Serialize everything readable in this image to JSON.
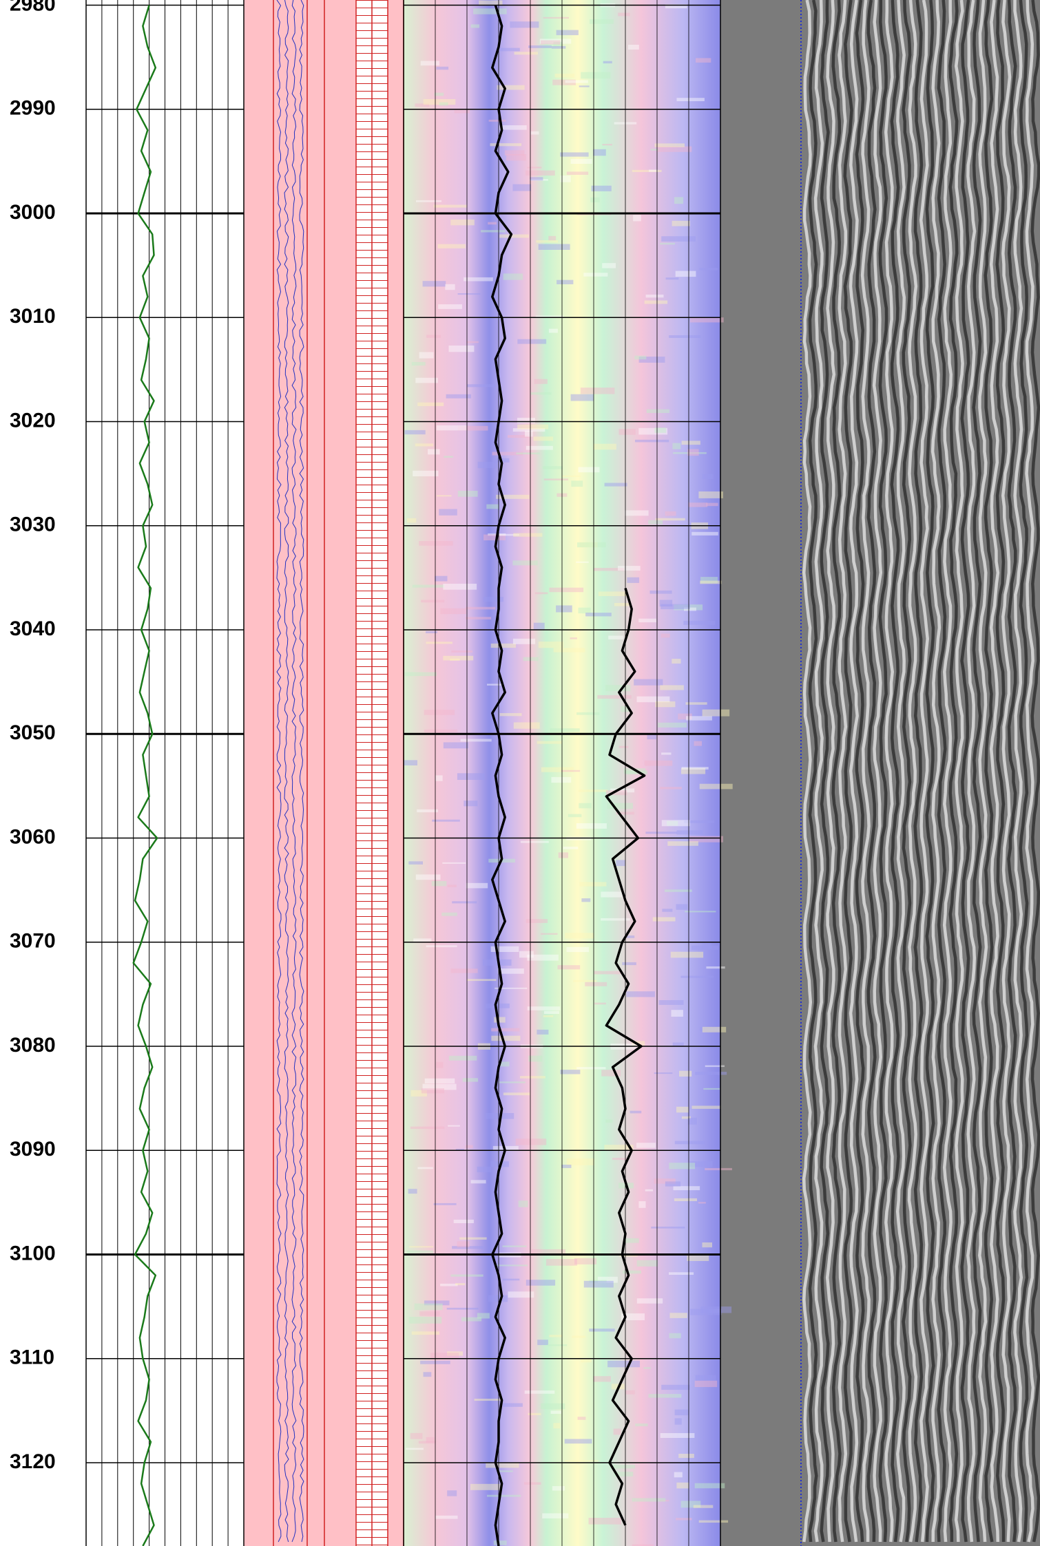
{
  "chart_data": {
    "type": "well-log",
    "ylim": [
      2979.5,
      3128
    ],
    "yticks": [
      2980,
      2990,
      3000,
      3010,
      3020,
      3030,
      3040,
      3050,
      3060,
      3070,
      3080,
      3090,
      3100,
      3110,
      3120
    ],
    "depths": [
      2980,
      2982,
      2984,
      2986,
      2988,
      2990,
      2992,
      2994,
      2996,
      2998,
      3000,
      3002,
      3004,
      3006,
      3008,
      3010,
      3012,
      3014,
      3016,
      3018,
      3020,
      3022,
      3024,
      3026,
      3028,
      3030,
      3032,
      3034,
      3036,
      3038,
      3040,
      3042,
      3044,
      3046,
      3048,
      3050,
      3052,
      3054,
      3056,
      3058,
      3060,
      3062,
      3064,
      3066,
      3068,
      3070,
      3072,
      3074,
      3076,
      3078,
      3080,
      3082,
      3084,
      3086,
      3088,
      3090,
      3092,
      3094,
      3096,
      3098,
      3100,
      3102,
      3104,
      3106,
      3108,
      3110,
      3112,
      3114,
      3116,
      3118,
      3120,
      3122,
      3124,
      3126,
      3128
    ],
    "series": [
      {
        "track": 1,
        "color": "#1a7a1a",
        "xlim": [
          0,
          10
        ],
        "values": [
          4.0,
          3.6,
          3.9,
          4.4,
          3.8,
          3.2,
          3.9,
          3.5,
          4.1,
          3.7,
          3.3,
          4.2,
          4.3,
          3.6,
          3.9,
          3.4,
          4.0,
          3.8,
          3.5,
          4.3,
          3.7,
          4.0,
          3.4,
          3.9,
          4.2,
          3.6,
          3.8,
          3.3,
          4.1,
          3.9,
          3.5,
          4.0,
          3.7,
          3.4,
          3.9,
          4.2,
          3.6,
          3.8,
          4.0,
          3.3,
          4.5,
          3.6,
          3.4,
          3.1,
          3.9,
          3.5,
          3.0,
          4.1,
          3.6,
          3.3,
          3.8,
          4.2,
          3.7,
          3.4,
          4.0,
          3.6,
          3.9,
          3.5,
          4.2,
          3.8,
          3.1,
          4.4,
          3.9,
          3.7,
          3.4,
          3.6,
          4.0,
          3.8,
          3.3,
          4.1,
          3.7,
          3.5,
          3.9,
          4.3,
          3.6
        ]
      },
      {
        "track": 2,
        "color": "#000000",
        "xlim": [
          0,
          10
        ],
        "values": [
          2.9,
          3.1,
          3.0,
          2.8,
          3.2,
          3.0,
          3.1,
          2.9,
          3.3,
          3.0,
          2.9,
          3.4,
          3.1,
          3.0,
          2.8,
          3.1,
          3.2,
          2.9,
          3.0,
          3.1,
          3.0,
          2.9,
          3.1,
          3.0,
          3.2,
          3.0,
          2.9,
          3.1,
          3.0,
          3.0,
          2.9,
          3.1,
          3.0,
          3.2,
          2.8,
          3.0,
          3.1,
          2.9,
          3.0,
          3.2,
          3.0,
          3.1,
          2.8,
          3.0,
          3.2,
          2.9,
          3.0,
          3.1,
          2.9,
          3.0,
          3.2,
          3.0,
          2.9,
          3.1,
          3.0,
          3.2,
          3.0,
          2.9,
          3.0,
          3.1,
          2.8,
          3.0,
          3.1,
          2.9,
          3.2,
          3.0,
          2.9,
          3.1,
          3.0,
          3.0,
          2.9,
          3.1,
          3.0,
          2.9,
          3.0
        ]
      },
      {
        "track": 2,
        "color": "#000000",
        "xlim": [
          0,
          10
        ],
        "values": [
          null,
          null,
          null,
          null,
          null,
          null,
          null,
          null,
          null,
          null,
          null,
          null,
          null,
          null,
          null,
          null,
          null,
          null,
          null,
          null,
          null,
          null,
          null,
          null,
          null,
          null,
          null,
          null,
          7.0,
          7.2,
          7.1,
          6.9,
          7.3,
          6.8,
          7.2,
          6.7,
          6.5,
          7.6,
          6.4,
          6.9,
          7.4,
          6.6,
          6.8,
          7.0,
          7.3,
          6.9,
          6.7,
          7.1,
          6.8,
          6.4,
          7.5,
          6.6,
          6.9,
          7.0,
          6.8,
          7.2,
          6.9,
          7.1,
          6.8,
          7.0,
          6.9,
          7.1,
          6.8,
          7.0,
          6.7,
          7.2,
          6.9,
          6.6,
          7.1,
          6.8,
          6.5,
          6.9,
          6.7,
          7.0,
          null
        ]
      }
    ]
  }
}
